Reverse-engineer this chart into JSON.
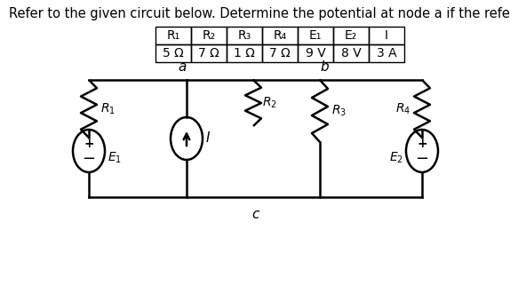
{
  "title": "Refer to the given circuit below. Determine the potential at node a if the reference is node b.",
  "table_headers": [
    "R₁",
    "R₂",
    "R₃",
    "R₄",
    "E₁",
    "E₂",
    "I"
  ],
  "table_values": [
    "5 Ω",
    "7 Ω",
    "1 Ω",
    "7 Ω",
    "9 V",
    "8 V",
    "3 A"
  ],
  "bg_color": "#ffffff",
  "text_color": "#000000",
  "line_color": "#000000",
  "font_size_title": 10.5,
  "font_size_table": 10,
  "font_size_labels": 10
}
